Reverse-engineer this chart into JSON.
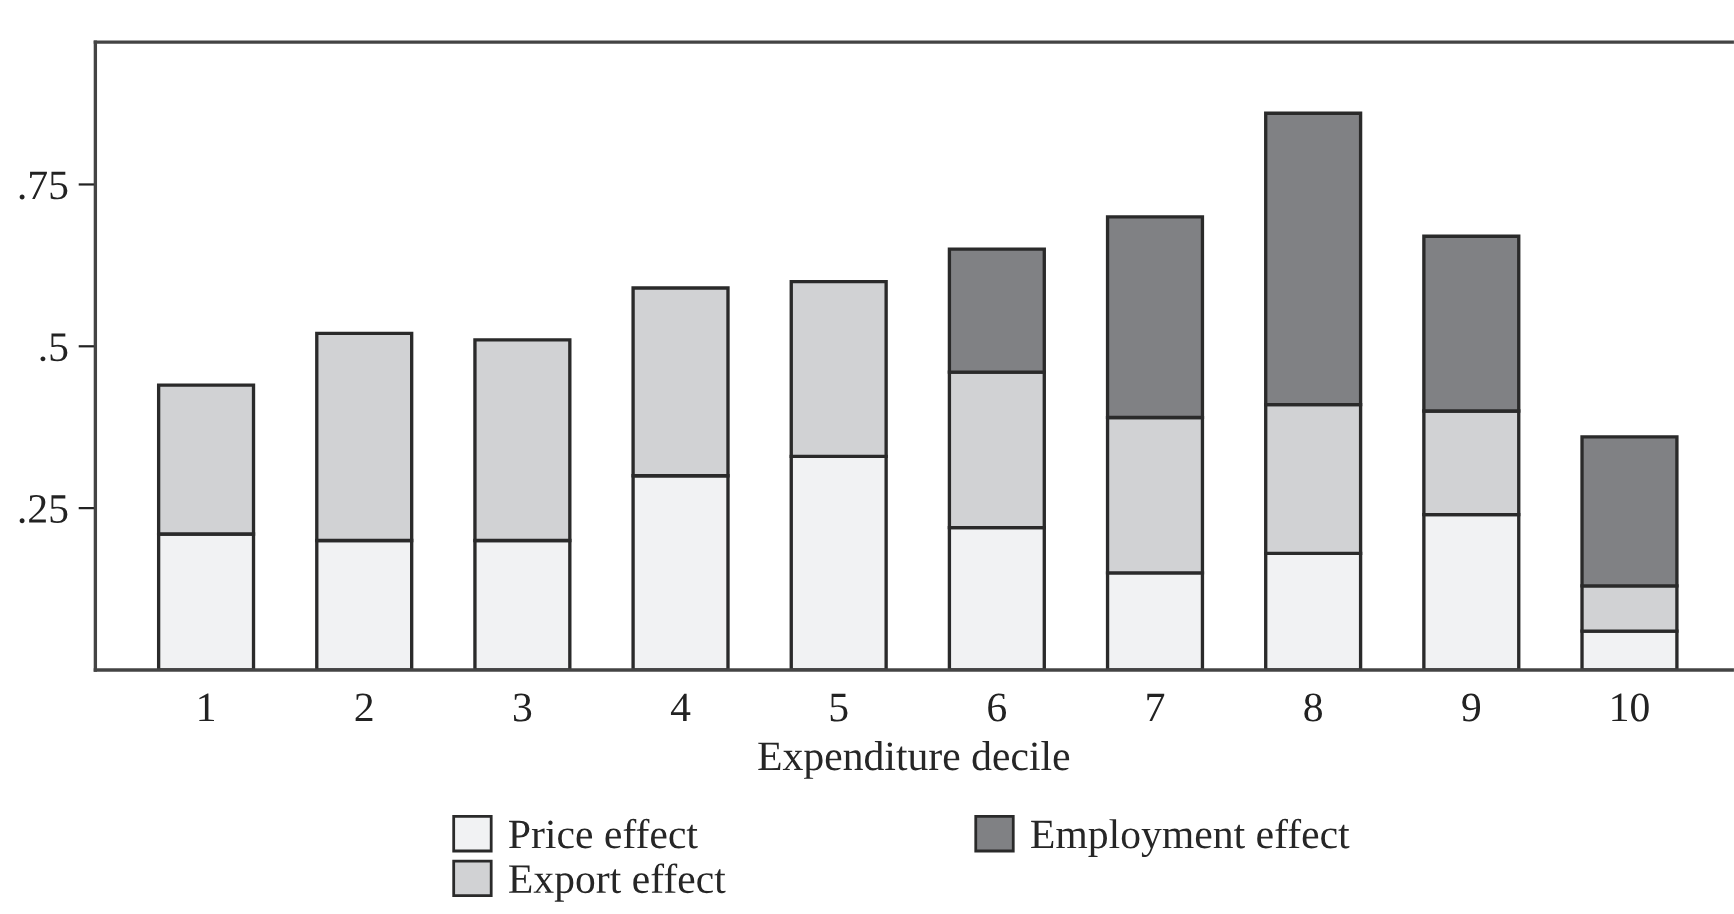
{
  "chart_data": {
    "type": "bar",
    "stacked": true,
    "xlabel": "Expenditure decile",
    "categories": [
      "1",
      "2",
      "3",
      "4",
      "5",
      "6",
      "7",
      "8",
      "9",
      "10"
    ],
    "series": [
      {
        "name": "Price effect",
        "color": "#f1f2f3",
        "values": [
          0.21,
          0.2,
          0.2,
          0.3,
          0.33,
          0.22,
          0.15,
          0.18,
          0.24,
          0.06
        ]
      },
      {
        "name": "Export effect",
        "color": "#d1d2d4",
        "values": [
          0.23,
          0.32,
          0.31,
          0.29,
          0.27,
          0.24,
          0.24,
          0.23,
          0.16,
          0.07
        ]
      },
      {
        "name": "Employment effect",
        "color": "#808184",
        "values": [
          null,
          null,
          null,
          null,
          null,
          0.19,
          0.31,
          0.45,
          0.27,
          0.23
        ]
      }
    ],
    "ylim": [
      0,
      0.97
    ],
    "yticks": [
      {
        "value": 0.25,
        "label": ".25"
      },
      {
        "value": 0.5,
        "label": ".5"
      },
      {
        "value": 0.75,
        "label": ".75"
      }
    ],
    "grid": false,
    "legend": "bottom"
  }
}
